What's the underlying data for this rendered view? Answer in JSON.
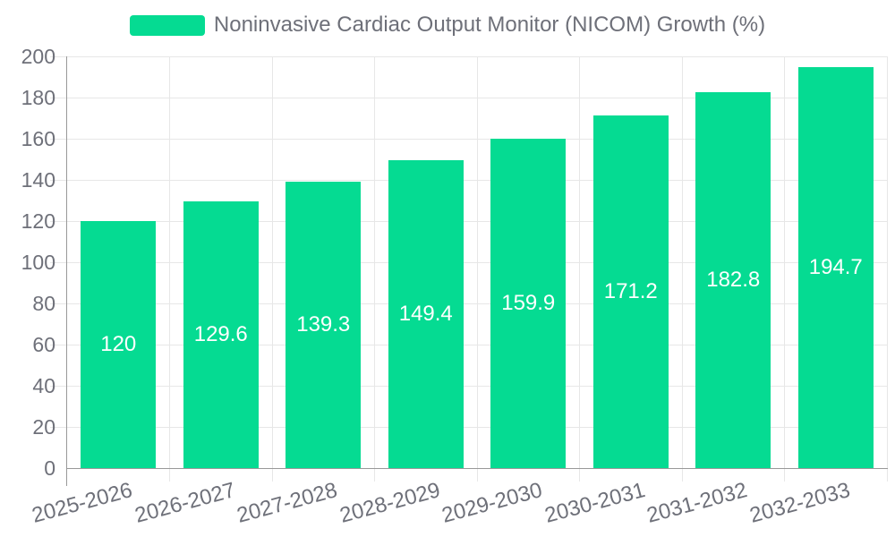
{
  "chart_data": {
    "type": "bar",
    "legend": [
      "Noninvasive Cardiac Output Monitor (NICOM) Growth (%)"
    ],
    "legend_position": "top-center",
    "categories": [
      "2025-2026",
      "2026-2027",
      "2027-2028",
      "2028-2029",
      "2029-2030",
      "2030-2031",
      "2031-2032",
      "2032-2033"
    ],
    "series": [
      {
        "name": "Noninvasive Cardiac Output Monitor (NICOM) Growth (%)",
        "values": [
          120,
          129.6,
          139.3,
          149.4,
          159.9,
          171.2,
          182.8,
          194.7
        ]
      }
    ],
    "value_labels": [
      "120",
      "129.6",
      "139.3",
      "149.4",
      "159.9",
      "171.2",
      "182.8",
      "194.7"
    ],
    "ylim": [
      0,
      200
    ],
    "yticks": [
      0,
      20,
      40,
      60,
      80,
      100,
      120,
      140,
      160,
      180,
      200
    ],
    "grid": true,
    "x_label_rotation_deg": 15,
    "colors": {
      "bar": "#05DB92",
      "grid": "#E7E7E7",
      "axis": "#999999",
      "tick_text": "#6E7079",
      "legend_text": "#6E7079",
      "value_text": "#FFFFFF",
      "background": "#FFFFFF"
    }
  }
}
